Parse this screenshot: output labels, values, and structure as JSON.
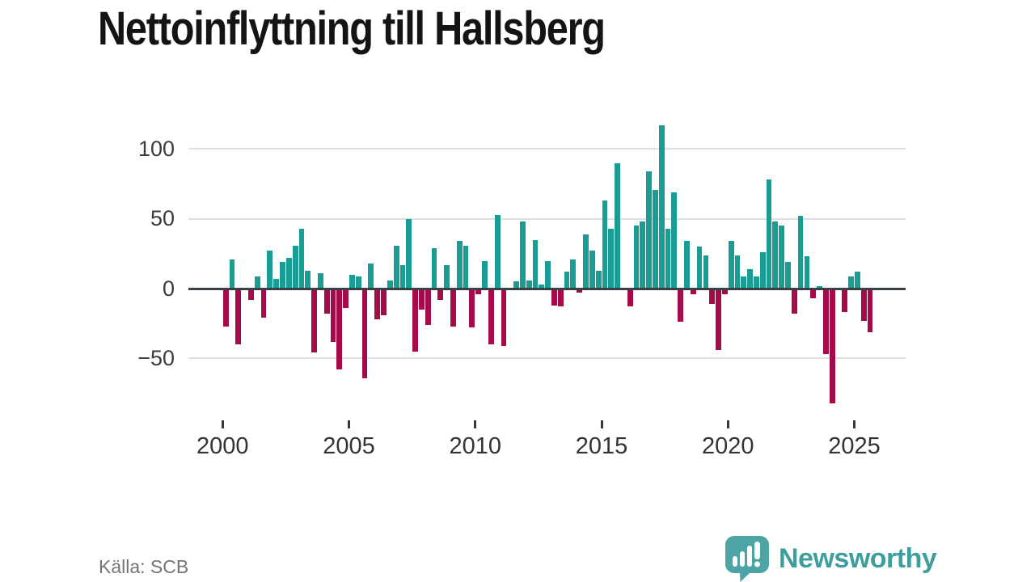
{
  "title": "Nettoinflyttning till Hallsberg",
  "source": "Källa: SCB",
  "logo": {
    "text": "Newsworthy"
  },
  "chart_data": {
    "type": "bar",
    "title": "Nettoinflyttning till Hallsberg",
    "x_unit": "quarter",
    "start_year": 2000,
    "start_quarter": 1,
    "end_year": 2025,
    "end_quarter": 3,
    "values": [
      -27,
      21,
      -40,
      0,
      -8,
      9,
      -21,
      27,
      7,
      19,
      22,
      31,
      43,
      13,
      -46,
      11,
      -18,
      -38,
      -58,
      -14,
      10,
      9,
      -64,
      18,
      -22,
      -19,
      6,
      31,
      17,
      50,
      -45,
      -15,
      -26,
      29,
      -8,
      17,
      -27,
      34,
      31,
      -28,
      -4,
      20,
      -40,
      53,
      -41,
      0,
      5,
      48,
      6,
      35,
      3,
      20,
      -12,
      -13,
      12,
      21,
      -3,
      39,
      27,
      13,
      63,
      43,
      90,
      0,
      -13,
      45,
      48,
      84,
      71,
      117,
      43,
      69,
      -24,
      34,
      -4,
      30,
      24,
      -11,
      -44,
      -4,
      34,
      24,
      9,
      14,
      9,
      26,
      78,
      48,
      45,
      19,
      -18,
      52,
      23,
      -7,
      2,
      -47,
      -82,
      0,
      -17,
      9,
      12,
      -23,
      -31
    ],
    "x_tick_labels": [
      "2000",
      "2005",
      "2010",
      "2015",
      "2020",
      "2025"
    ],
    "y_tick_values": [
      100,
      50,
      0,
      -50
    ],
    "y_tick_labels": [
      "100",
      "50",
      "0",
      "−50"
    ],
    "ylim": [
      -90,
      126
    ],
    "grid": true,
    "legend": false,
    "colors": {
      "positive": "#189c94",
      "negative": "#a30c49"
    }
  }
}
